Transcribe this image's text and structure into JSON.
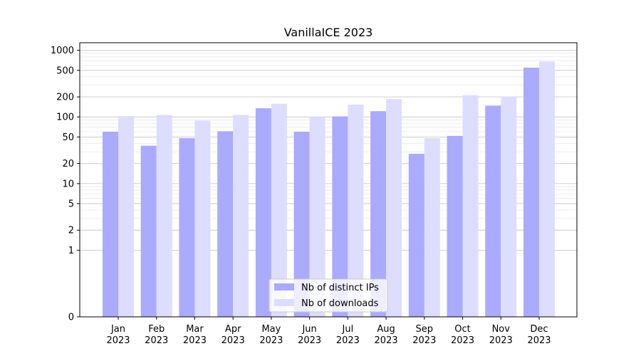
{
  "chart_data": {
    "type": "bar",
    "title": "VanillaICE 2023",
    "xlabel": "",
    "ylabel": "",
    "scale": "symlog",
    "ylim": [
      0,
      1300
    ],
    "grid": true,
    "legend_position": "bottom-center",
    "categories": [
      [
        "Jan",
        "2023"
      ],
      [
        "Feb",
        "2023"
      ],
      [
        "Mar",
        "2023"
      ],
      [
        "Apr",
        "2023"
      ],
      [
        "May",
        "2023"
      ],
      [
        "Jun",
        "2023"
      ],
      [
        "Jul",
        "2023"
      ],
      [
        "Aug",
        "2023"
      ],
      [
        "Sep",
        "2023"
      ],
      [
        "Oct",
        "2023"
      ],
      [
        "Nov",
        "2023"
      ],
      [
        "Dec",
        "2023"
      ]
    ],
    "y_ticks": [
      0,
      1,
      2,
      5,
      10,
      20,
      50,
      100,
      200,
      500,
      1000
    ],
    "series": [
      {
        "name": "Nb of distinct IPs",
        "color": "#aaaaff",
        "values": [
          60,
          37,
          48,
          61,
          135,
          60,
          102,
          122,
          28,
          52,
          148,
          550
        ]
      },
      {
        "name": "Nb of downloads",
        "color": "#ddddff",
        "values": [
          103,
          107,
          88,
          107,
          158,
          100,
          153,
          185,
          48,
          212,
          200,
          680
        ]
      }
    ]
  }
}
